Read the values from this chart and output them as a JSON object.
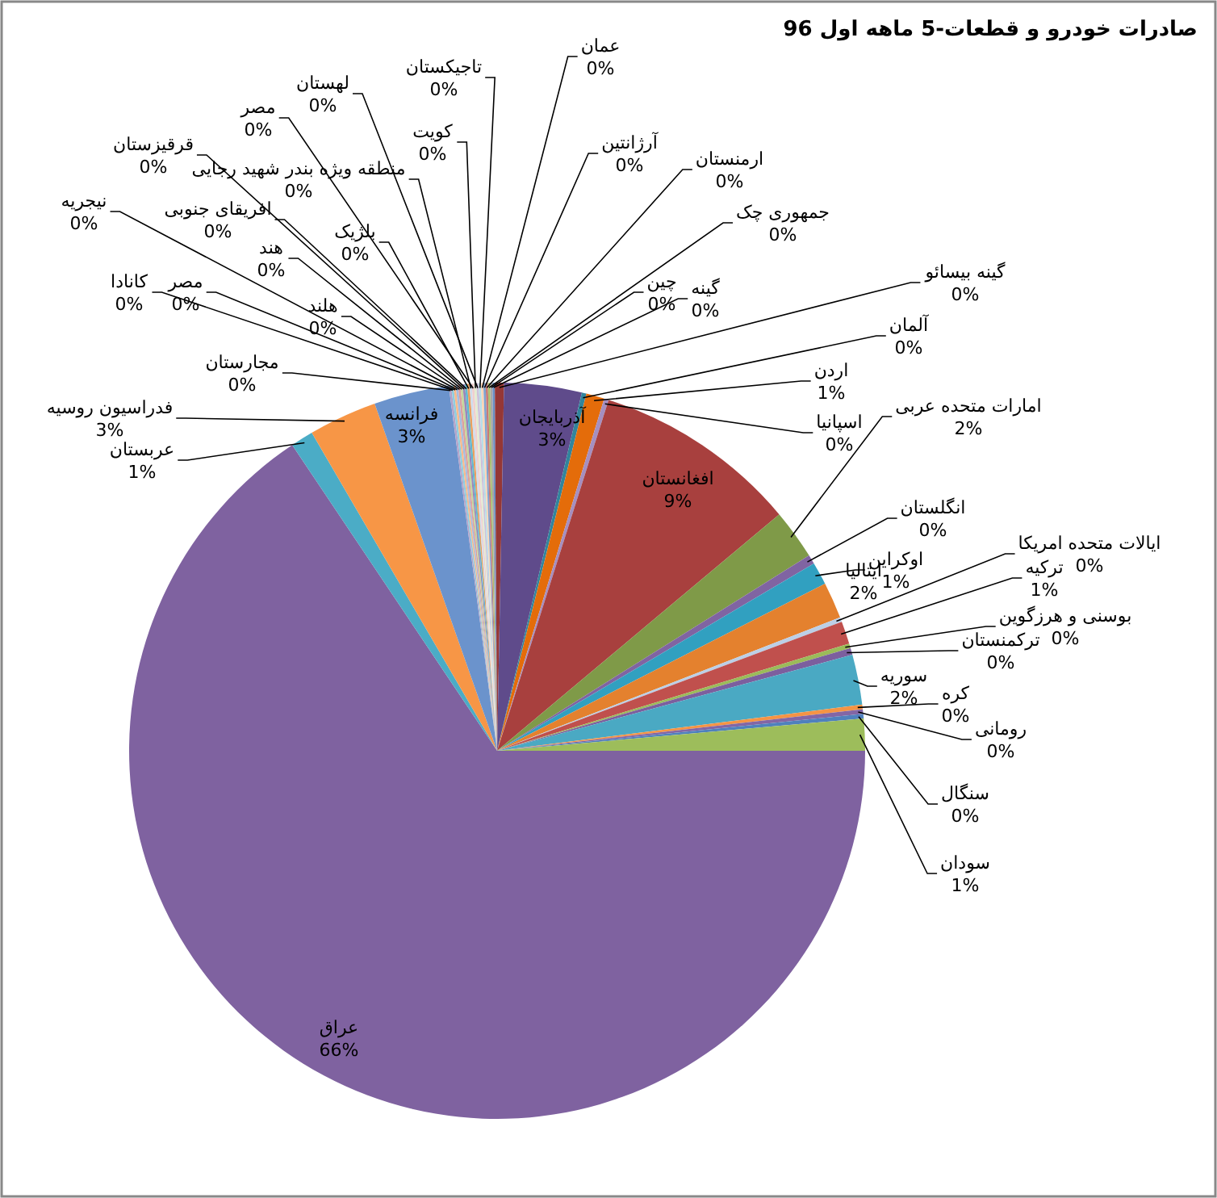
{
  "chart_data": {
    "type": "pie",
    "title": "صادرات خودرو و قطعات-5 ماهه اول 96",
    "categories": [
      "عراق",
      "عربستان",
      "فدراسیون روسیه",
      "فرانسه",
      "مجارستان",
      "کانادا",
      "مصر",
      "نیجریه",
      "هلند",
      "هند",
      "قرقیزستان",
      "افریقای جنوبی",
      "بلژیک",
      "منطقه ویژه بندر شهید رجایی",
      "مصر",
      "کویت",
      "لهستان",
      "تاجیکستان",
      "عمان",
      "آرژانتین",
      "ارمنستان",
      "جمهوری چک",
      "چین",
      "گینه",
      "گینه بیسائو",
      "آذربایجان",
      "آلمان",
      "اردن",
      "اسپانیا",
      "افغانستان",
      "امارات متحده عربی",
      "انگلستان",
      "اوکراین",
      "ایتالیا",
      "ایالات متحده امریکا",
      "ترکیه",
      "بوسنی و هرزگوین",
      "ترکمنستان",
      "سوریه",
      "کره",
      "رومانی",
      "سنگال",
      "سودان"
    ],
    "values": [
      65.6,
      1.0,
      3.0,
      3.3,
      0.1,
      0.1,
      0.1,
      0.1,
      0.1,
      0.1,
      0.1,
      0.1,
      0.1,
      0.1,
      0.1,
      0.1,
      0.1,
      0.1,
      0.1,
      0.1,
      0.1,
      0.1,
      0.1,
      0.1,
      0.4,
      3.4,
      0.2,
      0.8,
      0.2,
      9.0,
      2.2,
      0.4,
      1.0,
      1.6,
      0.2,
      1.0,
      0.2,
      0.3,
      2.2,
      0.2,
      0.2,
      0.2,
      1.4
    ],
    "value_labels": [
      "66%",
      "1%",
      "3%",
      "3%",
      "0%",
      "0%",
      "0%",
      "0%",
      "0%",
      "0%",
      "0%",
      "0%",
      "0%",
      "0%",
      "0%",
      "0%",
      "0%",
      "0%",
      "0%",
      "0%",
      "0%",
      "0%",
      "0%",
      "0%",
      "0%",
      "3%",
      "0%",
      "1%",
      "0%",
      "9%",
      "2%",
      "0%",
      "1%",
      "2%",
      "0%",
      "1%",
      "0%",
      "0%",
      "2%",
      "0%",
      "0%",
      "0%",
      "1%"
    ],
    "colors": [
      "#7f62a0",
      "#4bacc6",
      "#f79646",
      "#6b93cc",
      "#b4a3c9",
      "#8ecde0",
      "#f9b98a",
      "#a5bde0",
      "#dca09e",
      "#c4d79b",
      "#9a86b9",
      "#5fb8d0",
      "#e9a05e",
      "#d0dcec",
      "#f0cfce",
      "#e2ecd0",
      "#ccc1da",
      "#b7dee8",
      "#fcd5b5",
      "#7fa3d0",
      "#c77a77",
      "#a9c270",
      "#a6a6a6",
      "#6a8fc4",
      "#953735",
      "#5f4b8b",
      "#31859c",
      "#e46c0a",
      "#a58fc0",
      "#a8403e",
      "#7f9a48",
      "#8064a2",
      "#31a0c0",
      "#e4812e",
      "#bccfe6",
      "#c0504d",
      "#9bbb59",
      "#7c5f9e",
      "#4aa9c3",
      "#f59444",
      "#8366a5",
      "#4f81bd",
      "#9dbd5b"
    ]
  }
}
